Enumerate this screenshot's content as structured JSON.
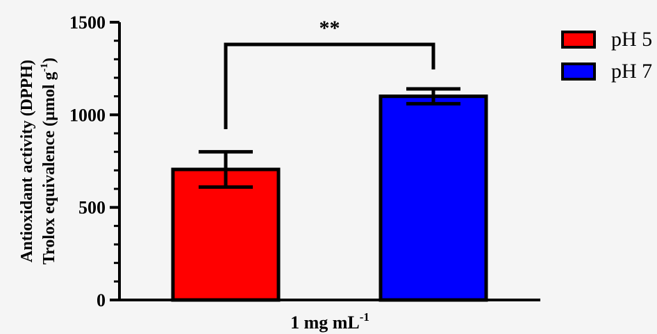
{
  "chart_data": {
    "type": "bar",
    "title": "",
    "categories": [
      "1 mg mL"
    ],
    "xlabel": "1 mg mL",
    "xlabel_superscript": "-1",
    "ylabel_line1": "Antioxidant activity (DPPH)",
    "ylabel_line2": "Trolox equivalence (µmol g",
    "ylabel_line2_superscript": "-1",
    "ylabel_line2_end": ")",
    "ylim": [
      0,
      1500
    ],
    "yticks": [
      0,
      500,
      1000,
      1500
    ],
    "minor_ticks_per_major": 5,
    "grid": false,
    "legend_position": "top-right",
    "series": [
      {
        "name": "pH 5",
        "values": [
          705
        ],
        "error": [
          95
        ],
        "color": "#ff0000"
      },
      {
        "name": "pH 7",
        "values": [
          1100
        ],
        "error": [
          40
        ],
        "color": "#0000ff"
      }
    ],
    "significance": {
      "label": "**",
      "between": [
        "pH 5",
        "pH 7"
      ]
    }
  }
}
